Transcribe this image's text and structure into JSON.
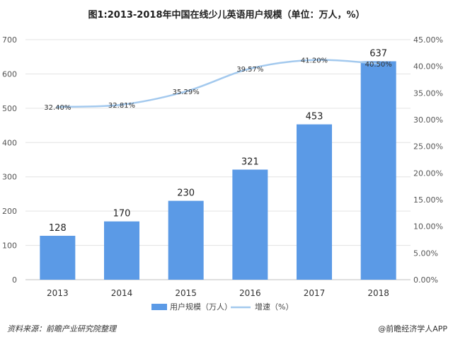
{
  "title": "图1:2013-2018年中国在线少儿英语用户规模（单位：万人，%）",
  "source": "资料来源：前瞻产业研究院整理",
  "brand": "@前瞻经济学人APP",
  "colors": {
    "bar": "#5b9ae6",
    "line": "#a3c9ee",
    "grid": "#e3e3e3"
  },
  "chart_data": {
    "type": "bar",
    "title": "图1:2013-2018年中国在线少儿英语用户规模（单位：万人，%）",
    "categories": [
      "2013",
      "2014",
      "2015",
      "2016",
      "2017",
      "2018"
    ],
    "series": [
      {
        "name": "用户规模（万人）",
        "type": "bar",
        "axis": "left",
        "values": [
          128,
          170,
          230,
          321,
          453,
          637
        ],
        "labels": [
          "128",
          "170",
          "230",
          "321",
          "453",
          "637"
        ]
      },
      {
        "name": "增速（%）",
        "type": "line",
        "axis": "right",
        "values": [
          32.4,
          32.81,
          35.29,
          39.57,
          41.2,
          40.5
        ],
        "labels": [
          "32.40%",
          "32.81%",
          "35.29%",
          "39.57%",
          "41.20%",
          "40.50%"
        ]
      }
    ],
    "left_axis": {
      "ylim": [
        0,
        700
      ],
      "ticks": [
        "0",
        "100",
        "200",
        "300",
        "400",
        "500",
        "600",
        "700"
      ]
    },
    "right_axis": {
      "ylim": [
        0,
        45
      ],
      "ticks": [
        "0.00%",
        "5.00%",
        "10.00%",
        "15.00%",
        "20.00%",
        "25.00%",
        "30.00%",
        "35.00%",
        "40.00%",
        "45.00%"
      ]
    },
    "grid": true,
    "legend": "bottom"
  }
}
